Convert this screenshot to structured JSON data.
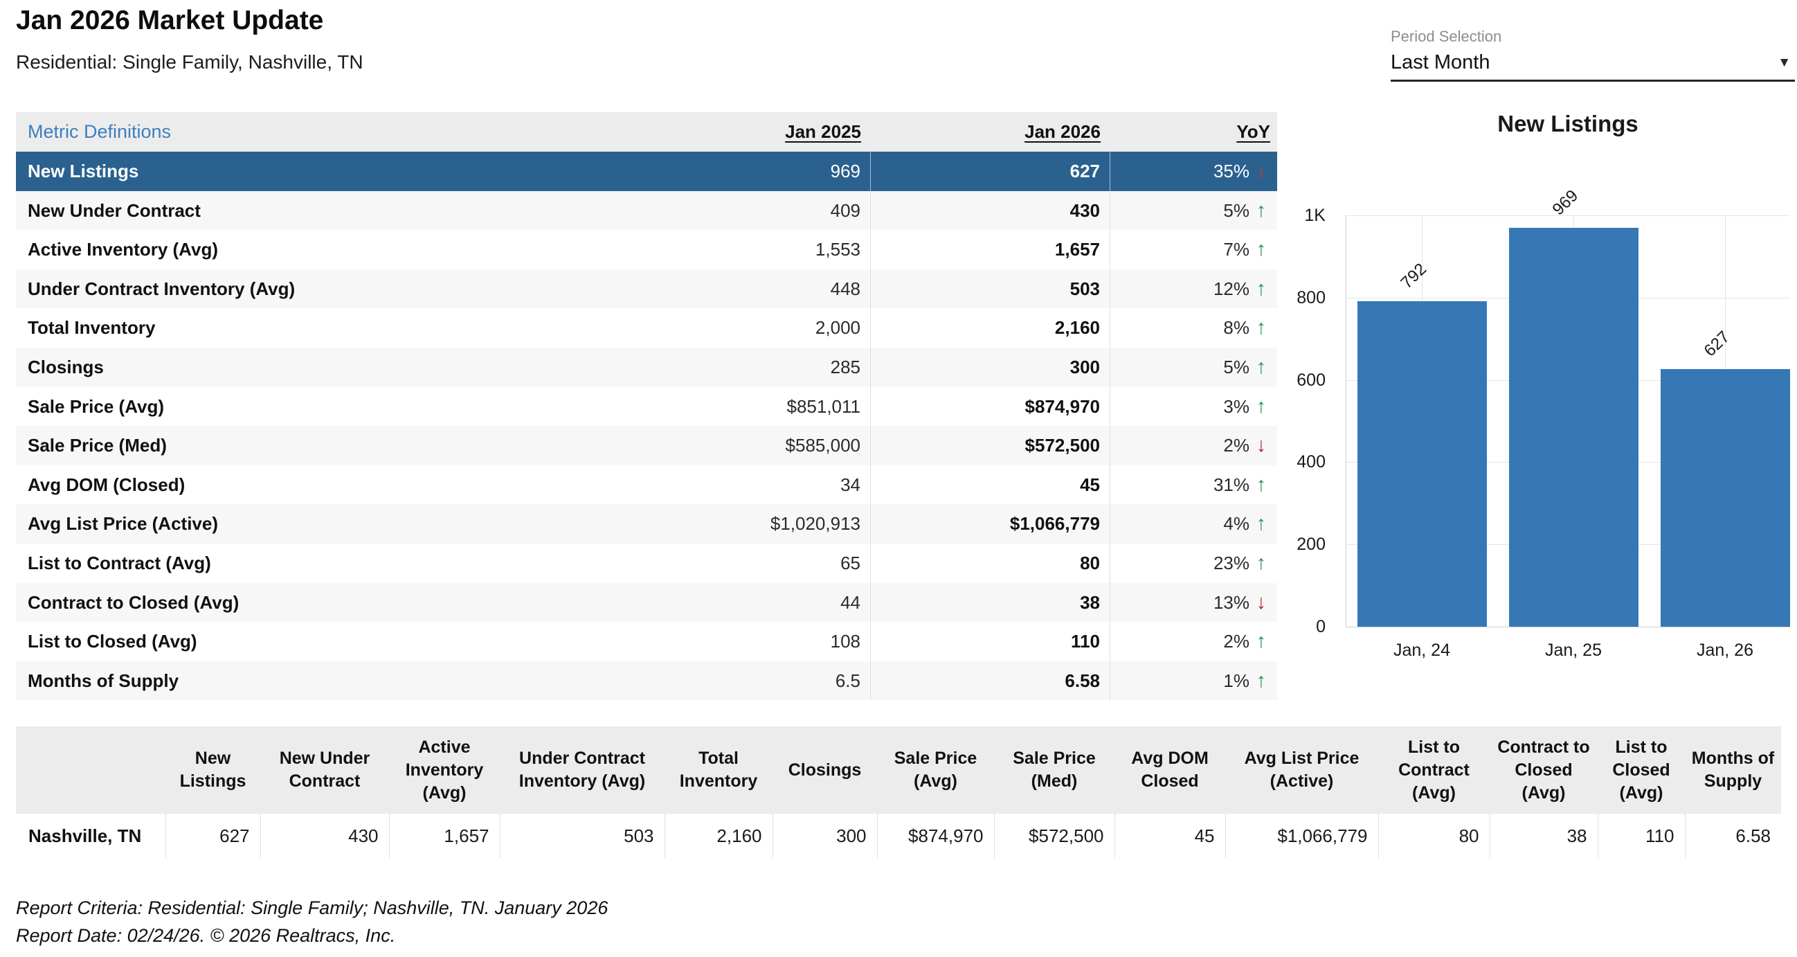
{
  "header": {
    "title": "Jan 2026 Market Update",
    "subtitle": "Residential: Single Family, Nashville, TN"
  },
  "period_selection": {
    "label": "Period Selection",
    "value": "Last Month",
    "caret_icon": "▼"
  },
  "icons": {
    "up_arrow": "↑",
    "down_arrow": "↓"
  },
  "colors": {
    "selected_row_blue": "#2a618f",
    "bar_blue": "#3578b5",
    "link_blue": "#3f7ec0",
    "header_gray": "#ececec",
    "stripe_gray": "#f7f7f7",
    "up_green": "#28914f",
    "down_red": "#b5242b"
  },
  "metrics_table": {
    "definitions_link": "Metric Definitions",
    "columns": [
      "Jan 2025",
      "Jan 2026",
      "YoY"
    ],
    "rows": [
      {
        "metric": "New Listings",
        "jan_2025": "969",
        "jan_2026": "627",
        "yoy": "35%",
        "direction": "down",
        "selected": true
      },
      {
        "metric": "New Under Contract",
        "jan_2025": "409",
        "jan_2026": "430",
        "yoy": "5%",
        "direction": "up"
      },
      {
        "metric": "Active Inventory (Avg)",
        "jan_2025": "1,553",
        "jan_2026": "1,657",
        "yoy": "7%",
        "direction": "up"
      },
      {
        "metric": "Under Contract Inventory (Avg)",
        "jan_2025": "448",
        "jan_2026": "503",
        "yoy": "12%",
        "direction": "up"
      },
      {
        "metric": "Total Inventory",
        "jan_2025": "2,000",
        "jan_2026": "2,160",
        "yoy": "8%",
        "direction": "up"
      },
      {
        "metric": "Closings",
        "jan_2025": "285",
        "jan_2026": "300",
        "yoy": "5%",
        "direction": "up"
      },
      {
        "metric": "Sale Price (Avg)",
        "jan_2025": "$851,011",
        "jan_2026": "$874,970",
        "yoy": "3%",
        "direction": "up"
      },
      {
        "metric": "Sale Price (Med)",
        "jan_2025": "$585,000",
        "jan_2026": "$572,500",
        "yoy": "2%",
        "direction": "down"
      },
      {
        "metric": "Avg DOM (Closed)",
        "jan_2025": "34",
        "jan_2026": "45",
        "yoy": "31%",
        "direction": "up"
      },
      {
        "metric": "Avg List Price (Active)",
        "jan_2025": "$1,020,913",
        "jan_2026": "$1,066,779",
        "yoy": "4%",
        "direction": "up"
      },
      {
        "metric": "List to Contract (Avg)",
        "jan_2025": "65",
        "jan_2026": "80",
        "yoy": "23%",
        "direction": "up"
      },
      {
        "metric": "Contract to Closed (Avg)",
        "jan_2025": "44",
        "jan_2026": "38",
        "yoy": "13%",
        "direction": "down"
      },
      {
        "metric": "List to Closed (Avg)",
        "jan_2025": "108",
        "jan_2026": "110",
        "yoy": "2%",
        "direction": "up"
      },
      {
        "metric": "Months of Supply",
        "jan_2025": "6.5",
        "jan_2026": "6.58",
        "yoy": "1%",
        "direction": "up"
      }
    ]
  },
  "chart_data": {
    "type": "bar",
    "title": "New Listings",
    "categories": [
      "Jan, 24",
      "Jan, 25",
      "Jan, 26"
    ],
    "values": [
      792,
      969,
      627
    ],
    "xlabel": "",
    "ylabel": "",
    "ylim": [
      0,
      1000
    ],
    "yticks": [
      {
        "value": 0,
        "label": "0"
      },
      {
        "value": 200,
        "label": "200"
      },
      {
        "value": 400,
        "label": "400"
      },
      {
        "value": 600,
        "label": "600"
      },
      {
        "value": 800,
        "label": "800"
      },
      {
        "value": 1000,
        "label": "1K"
      }
    ],
    "grid": true,
    "legend": false,
    "data_label_rotation": -44,
    "bar_color": "#3578b5"
  },
  "summary_table": {
    "columns": [
      "New Listings",
      "New Under Contract",
      "Active Inventory (Avg)",
      "Under Contract Inventory (Avg)",
      "Total Inventory",
      "Closings",
      "Sale Price (Avg)",
      "Sale Price (Med)",
      "Avg DOM Closed",
      "Avg List Price (Active)",
      "List to Contract (Avg)",
      "Contract to Closed (Avg)",
      "List to Closed (Avg)",
      "Months of Supply"
    ],
    "rows": [
      {
        "label": "Nashville, TN",
        "values": [
          "627",
          "430",
          "1,657",
          "503",
          "2,160",
          "300",
          "$874,970",
          "$572,500",
          "45",
          "$1,066,779",
          "80",
          "38",
          "110",
          "6.58"
        ]
      }
    ]
  },
  "footer": {
    "line1": "Report Criteria: Residential: Single Family; Nashville, TN. January 2026",
    "line2": "Report Date: 02/24/26. © 2026 Realtracs, Inc."
  }
}
